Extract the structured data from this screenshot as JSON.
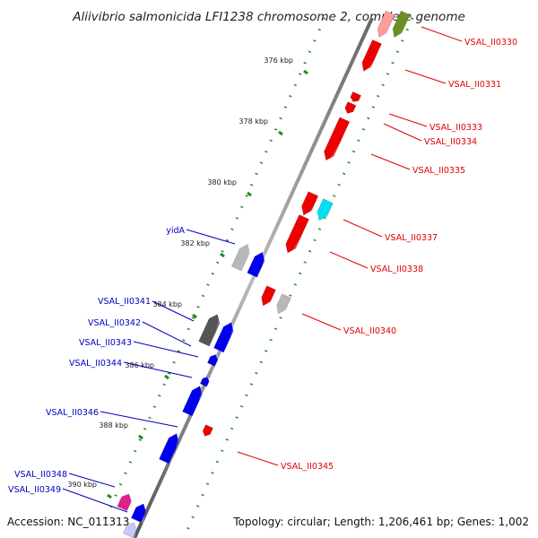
{
  "title": "Aliivibrio salmonicida LFI1238 chromosome 2, complete genome",
  "accession": "Accession: NC_011313",
  "topology": "Topology: circular; Length: 1,206,461 bp; Genes: 1,002",
  "ticks": [
    "376 kbp",
    "378 kbp",
    "380 kbp",
    "382 kbp",
    "384 kbp",
    "386 kbp",
    "388 kbp",
    "390 kbp"
  ],
  "genes_right": [
    "VSAL_II0330",
    "VSAL_II0331",
    "VSAL_II0333",
    "VSAL_II0334",
    "VSAL_II0335",
    "VSAL_II0337",
    "VSAL_II0338",
    "VSAL_II0340",
    "VSAL_II0345"
  ],
  "genes_left": [
    "yidA",
    "VSAL_II0341",
    "VSAL_II0342",
    "VSAL_II0343",
    "VSAL_II0344",
    "VSAL_II0346",
    "VSAL_II0348",
    "VSAL_II0349"
  ],
  "colors": {
    "forward": "#ee0000",
    "reverse": "#0000ee",
    "highlight_cyan": "#00e0f0",
    "highlight_olive": "#6b8e23",
    "highlight_magenta": "#e0208a",
    "grey": "#b8b8b8",
    "dark_grey": "#555555",
    "tick_green": "#228b22",
    "backbone": "#888888"
  }
}
